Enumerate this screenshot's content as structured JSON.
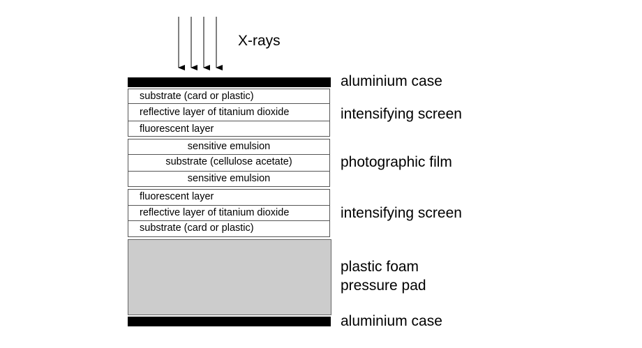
{
  "xrays_label": "X-rays",
  "labels": {
    "case_top": "aluminium case",
    "intensifying_screen_top": "intensifying screen",
    "photographic_film": "photographic film",
    "intensifying_screen_bottom": "intensifying screen",
    "foam_line1": "plastic foam",
    "foam_line2": "pressure pad",
    "case_bottom": "aluminium case"
  },
  "top_screen_layers": [
    "substrate (card or plastic)",
    "reflective layer of titanium dioxide",
    "fluorescent layer"
  ],
  "film_layers": [
    "sensitive emulsion",
    "substrate (cellulose acetate)",
    "sensitive emulsion"
  ],
  "bottom_screen_layers": [
    "fluorescent layer",
    "reflective layer of titanium dioxide",
    "substrate (card or plastic)"
  ],
  "colors": {
    "case": "#000000",
    "foam": "#cccccc",
    "border": "#555555"
  }
}
